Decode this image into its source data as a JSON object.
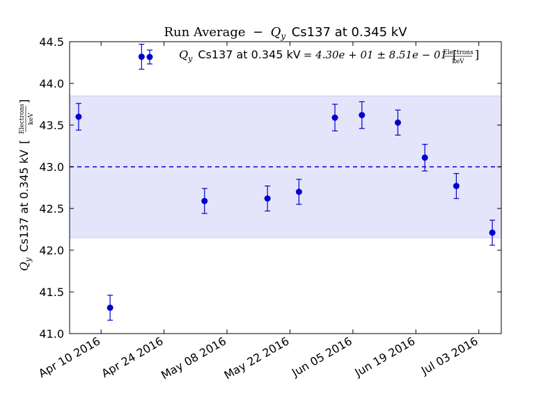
{
  "chart_data": {
    "type": "scatter",
    "title": {
      "prefix": "Run Average",
      "dash": "−",
      "qy": "Q",
      "qy_sub": "y",
      "suffix": "Cs137 at 0.345 kV"
    },
    "ylabel": {
      "qy": "Q",
      "qy_sub": "y",
      "text": "Cs137 at 0.345 kV",
      "unit_num": "Electrons",
      "unit_den": "keV"
    },
    "legend": {
      "qy": "Q",
      "qy_sub": "y",
      "text": "Cs137 at 0.345 kV",
      "formula": "= 4.30e + 01 ± 8.51e − 01",
      "unit_num": "Electrons",
      "unit_den": "keV",
      "placement": "top-center"
    },
    "ylim": [
      41.0,
      44.5
    ],
    "xlim": [
      "2016-04-03",
      "2016-07-08"
    ],
    "yticks": [
      "41.0",
      "41.5",
      "42.0",
      "42.5",
      "43.0",
      "43.5",
      "44.0",
      "44.5"
    ],
    "xticks": [
      {
        "date": "2016-04-10",
        "label": "Apr 10 2016"
      },
      {
        "date": "2016-04-24",
        "label": "Apr 24 2016"
      },
      {
        "date": "2016-05-08",
        "label": "May 08 2016"
      },
      {
        "date": "2016-05-22",
        "label": "May 22 2016"
      },
      {
        "date": "2016-06-05",
        "label": "Jun 05 2016"
      },
      {
        "date": "2016-06-19",
        "label": "Jun 19 2016"
      },
      {
        "date": "2016-07-03",
        "label": "Jul 03 2016"
      }
    ],
    "mean": 43.0,
    "band": [
      42.15,
      43.85
    ],
    "points": [
      {
        "date": "2016-04-05",
        "y": 43.6,
        "err": 0.16
      },
      {
        "date": "2016-04-12",
        "y": 41.31,
        "err": 0.15
      },
      {
        "date": "2016-04-19",
        "y": 44.32,
        "err": 0.15
      },
      {
        "date": "2016-05-03",
        "y": 42.59,
        "err": 0.15
      },
      {
        "date": "2016-05-17",
        "y": 42.62,
        "err": 0.15
      },
      {
        "date": "2016-05-24",
        "y": 42.7,
        "err": 0.15
      },
      {
        "date": "2016-06-01",
        "y": 43.59,
        "err": 0.16
      },
      {
        "date": "2016-06-07",
        "y": 43.62,
        "err": 0.16
      },
      {
        "date": "2016-06-15",
        "y": 43.53,
        "err": 0.15
      },
      {
        "date": "2016-06-21",
        "y": 43.11,
        "err": 0.16
      },
      {
        "date": "2016-06-28",
        "y": 42.77,
        "err": 0.15
      },
      {
        "date": "2016-07-06",
        "y": 42.21,
        "err": 0.15
      }
    ],
    "colors": {
      "points": "#0000cc",
      "errorbars": "#0000cc",
      "mean_line": "#0000cc",
      "band": "#e4e4fb",
      "band_edge": "#c8c8f5",
      "axes": "#000000"
    },
    "grid": false
  }
}
